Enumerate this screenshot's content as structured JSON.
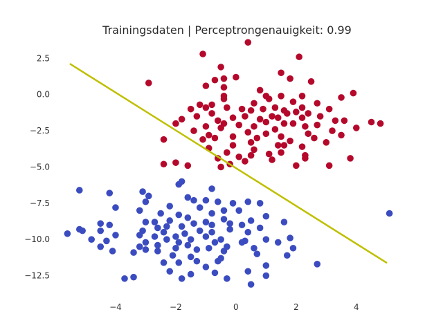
{
  "chart_data": {
    "type": "scatter",
    "title": "Trainingsdaten | Perceptrongenauigkeit: 0.99",
    "xlabel": "",
    "ylabel": "",
    "xlim": [
      -6.0,
      5.5
    ],
    "ylim": [
      -14.0,
      3.9
    ],
    "x_ticks": [
      -4,
      -2,
      0,
      2,
      4
    ],
    "x_tick_labels": [
      "−4",
      "−2",
      "0",
      "2",
      "4"
    ],
    "y_ticks": [
      2.5,
      0.0,
      -2.5,
      -5.0,
      -7.5,
      -10.0,
      -12.5
    ],
    "y_tick_labels": [
      "2.5",
      "0.0",
      "−2.5",
      "−5.0",
      "−7.5",
      "−10.0",
      "−12.5"
    ],
    "grid": false,
    "colors": {
      "class_red": "#b5092c",
      "class_blue": "#3b4cc0",
      "boundary": "#bfbf00"
    },
    "decision_boundary": {
      "x": [
        -5.5,
        5.0
      ],
      "y": [
        2.1,
        -11.6
      ]
    },
    "series": [
      {
        "color": "#b5092c",
        "points": [
          [
            0.4,
            3.6
          ],
          [
            -1.1,
            2.8
          ],
          [
            2.1,
            2.6
          ],
          [
            -0.5,
            1.9
          ],
          [
            1.5,
            1.5
          ],
          [
            0.0,
            1.2
          ],
          [
            -0.7,
            1.0
          ],
          [
            -0.4,
            1.1
          ],
          [
            1.8,
            1.1
          ],
          [
            2.5,
            0.9
          ],
          [
            -2.9,
            0.8
          ],
          [
            -1.0,
            0.6
          ],
          [
            -0.4,
            0.5
          ],
          [
            0.8,
            0.3
          ],
          [
            3.9,
            0.1
          ],
          [
            -0.4,
            -0.1
          ],
          [
            1.0,
            -0.1
          ],
          [
            1.5,
            -0.1
          ],
          [
            2.2,
            -0.1
          ],
          [
            3.5,
            -0.2
          ],
          [
            -0.4,
            -0.3
          ],
          [
            1.1,
            -0.3
          ],
          [
            1.9,
            -0.5
          ],
          [
            0.6,
            -0.6
          ],
          [
            2.7,
            -0.6
          ],
          [
            -1.2,
            -0.7
          ],
          [
            -0.8,
            -0.7
          ],
          [
            -1.0,
            -0.9
          ],
          [
            1.3,
            -0.9
          ],
          [
            2.2,
            -0.9
          ],
          [
            -0.3,
            -0.9
          ],
          [
            0.2,
            -1.0
          ],
          [
            0.9,
            -1.0
          ],
          [
            3.1,
            -1.0
          ],
          [
            -1.5,
            -1.0
          ],
          [
            0.5,
            -1.1
          ],
          [
            1.6,
            -1.1
          ],
          [
            2.0,
            -1.2
          ],
          [
            -0.8,
            -1.3
          ],
          [
            1.7,
            -1.3
          ],
          [
            2.4,
            -1.3
          ],
          [
            -1.3,
            -1.5
          ],
          [
            0.3,
            -1.5
          ],
          [
            1.2,
            -1.5
          ],
          [
            2.8,
            -1.5
          ],
          [
            -0.1,
            -1.6
          ],
          [
            1.4,
            -1.6
          ],
          [
            2.2,
            -1.6
          ],
          [
            -1.8,
            -1.7
          ],
          [
            0.8,
            -1.7
          ],
          [
            3.3,
            -1.8
          ],
          [
            -0.6,
            -1.8
          ],
          [
            3.6,
            -1.8
          ],
          [
            1.0,
            -1.9
          ],
          [
            4.5,
            -1.9
          ],
          [
            -0.4,
            -2.0
          ],
          [
            1.6,
            -2.0
          ],
          [
            4.8,
            -2.0
          ],
          [
            -2.0,
            -2.0
          ],
          [
            1.9,
            -2.0
          ],
          [
            0.1,
            -2.1
          ],
          [
            2.7,
            -2.1
          ],
          [
            -1.0,
            -2.2
          ],
          [
            0.6,
            -2.2
          ],
          [
            2.3,
            -2.2
          ],
          [
            4.0,
            -2.3
          ],
          [
            -0.5,
            -2.3
          ],
          [
            1.3,
            -2.4
          ],
          [
            3.2,
            -2.5
          ],
          [
            -1.4,
            -2.5
          ],
          [
            0.4,
            -2.6
          ],
          [
            1.0,
            -2.7
          ],
          [
            2.4,
            -2.7
          ],
          [
            -0.9,
            -2.8
          ],
          [
            3.5,
            -2.8
          ],
          [
            -0.1,
            -2.9
          ],
          [
            1.5,
            -2.9
          ],
          [
            -0.7,
            -3.0
          ],
          [
            0.7,
            -3.0
          ],
          [
            2.6,
            -3.0
          ],
          [
            -1.1,
            -3.1
          ],
          [
            -2.4,
            -3.1
          ],
          [
            1.8,
            -3.2
          ],
          [
            0.5,
            -3.3
          ],
          [
            3.0,
            -3.3
          ],
          [
            1.4,
            -3.5
          ],
          [
            -0.1,
            -3.5
          ],
          [
            1.6,
            -3.5
          ],
          [
            2.2,
            -3.6
          ],
          [
            -0.9,
            -3.7
          ],
          [
            0.6,
            -3.8
          ],
          [
            -0.3,
            -4.0
          ],
          [
            1.5,
            -4.0
          ],
          [
            1.1,
            -4.1
          ],
          [
            2.3,
            -4.2
          ],
          [
            0.5,
            -4.2
          ],
          [
            0.1,
            -4.3
          ],
          [
            -0.6,
            -4.4
          ],
          [
            2.3,
            -4.4
          ],
          [
            3.8,
            -4.4
          ],
          [
            -2.0,
            -4.7
          ],
          [
            0.3,
            -4.6
          ],
          [
            1.2,
            -4.5
          ],
          [
            -0.2,
            -4.8
          ],
          [
            -1.6,
            -4.9
          ],
          [
            3.1,
            -4.9
          ],
          [
            -0.5,
            -5.0
          ],
          [
            -2.4,
            -4.8
          ],
          [
            2.0,
            -4.9
          ]
        ]
      },
      {
        "color": "#3b4cc0",
        "points": [
          [
            -1.8,
            -6.0
          ],
          [
            -1.9,
            -6.2
          ],
          [
            -5.2,
            -6.6
          ],
          [
            -3.1,
            -6.7
          ],
          [
            -4.2,
            -6.8
          ],
          [
            -0.8,
            -6.5
          ],
          [
            -2.9,
            -7.0
          ],
          [
            -1.6,
            -7.1
          ],
          [
            -1.4,
            -7.3
          ],
          [
            -1.0,
            -7.3
          ],
          [
            -3.0,
            -7.4
          ],
          [
            -0.6,
            -7.4
          ],
          [
            -0.1,
            -7.5
          ],
          [
            0.4,
            -7.4
          ],
          [
            0.8,
            -7.5
          ],
          [
            -2.2,
            -7.7
          ],
          [
            -4.0,
            -7.8
          ],
          [
            -3.2,
            -8.0
          ],
          [
            -1.2,
            -7.8
          ],
          [
            -0.4,
            -8.0
          ],
          [
            0.1,
            -8.0
          ],
          [
            -2.5,
            -8.2
          ],
          [
            -1.9,
            -8.3
          ],
          [
            -0.8,
            -8.2
          ],
          [
            5.1,
            -8.2
          ],
          [
            1.0,
            -8.4
          ],
          [
            -1.6,
            -8.5
          ],
          [
            -0.4,
            -8.6
          ],
          [
            0.5,
            -8.7
          ],
          [
            -2.2,
            -8.7
          ],
          [
            -3.0,
            -8.8
          ],
          [
            -2.7,
            -8.8
          ],
          [
            -1.4,
            -8.9
          ],
          [
            -1.0,
            -8.8
          ],
          [
            -0.2,
            -8.9
          ],
          [
            1.6,
            -8.8
          ],
          [
            -4.5,
            -8.9
          ],
          [
            -4.2,
            -9.0
          ],
          [
            -2.3,
            -9.1
          ],
          [
            -0.8,
            -9.0
          ],
          [
            0.2,
            -9.0
          ],
          [
            -1.8,
            -9.1
          ],
          [
            0.8,
            -9.2
          ],
          [
            -2.6,
            -9.2
          ],
          [
            -5.2,
            -9.3
          ],
          [
            -4.5,
            -9.4
          ],
          [
            -5.1,
            -9.4
          ],
          [
            -3.1,
            -9.4
          ],
          [
            -1.2,
            -9.4
          ],
          [
            -0.2,
            -9.3
          ],
          [
            -2.4,
            -9.5
          ],
          [
            -1.7,
            -9.6
          ],
          [
            -0.8,
            -9.5
          ],
          [
            0.4,
            -9.5
          ],
          [
            -5.6,
            -9.6
          ],
          [
            -4.0,
            -9.7
          ],
          [
            -3.2,
            -9.7
          ],
          [
            -2.7,
            -9.8
          ],
          [
            -2.0,
            -9.8
          ],
          [
            -1.0,
            -9.8
          ],
          [
            1.8,
            -9.9
          ],
          [
            -4.8,
            -10.0
          ],
          [
            -2.3,
            -10.0
          ],
          [
            -1.5,
            -10.0
          ],
          [
            -0.5,
            -10.0
          ],
          [
            0.3,
            -10.1
          ],
          [
            1.0,
            -10.0
          ],
          [
            -4.3,
            -10.1
          ],
          [
            -3.0,
            -10.2
          ],
          [
            -1.9,
            -10.2
          ],
          [
            -0.7,
            -10.2
          ],
          [
            0.2,
            -10.2
          ],
          [
            1.4,
            -10.2
          ],
          [
            -2.6,
            -10.4
          ],
          [
            -1.6,
            -10.4
          ],
          [
            -0.3,
            -10.5
          ],
          [
            -4.5,
            -10.5
          ],
          [
            -3.2,
            -10.5
          ],
          [
            -2.0,
            -10.6
          ],
          [
            -0.9,
            -10.6
          ],
          [
            0.6,
            -10.6
          ],
          [
            1.9,
            -10.6
          ],
          [
            -3.0,
            -10.7
          ],
          [
            -1.3,
            -10.7
          ],
          [
            -0.4,
            -10.8
          ],
          [
            -2.6,
            -10.8
          ],
          [
            -4.1,
            -10.8
          ],
          [
            -3.4,
            -10.9
          ],
          [
            0.7,
            -11.0
          ],
          [
            1.7,
            -11.1
          ],
          [
            -2.1,
            -11.1
          ],
          [
            -1.5,
            -11.2
          ],
          [
            -0.5,
            -11.3
          ],
          [
            -1.3,
            -11.5
          ],
          [
            -2.4,
            -11.6
          ],
          [
            -1.9,
            -11.6
          ],
          [
            -0.6,
            -11.5
          ],
          [
            1.0,
            -11.8
          ],
          [
            2.7,
            -11.7
          ],
          [
            -1.0,
            -11.9
          ],
          [
            -2.2,
            -12.2
          ],
          [
            0.4,
            -12.2
          ],
          [
            -1.5,
            -12.4
          ],
          [
            -0.7,
            -12.3
          ],
          [
            1.0,
            -12.5
          ],
          [
            -3.4,
            -12.6
          ],
          [
            -3.7,
            -12.7
          ],
          [
            -1.8,
            -12.7
          ],
          [
            -0.3,
            -12.7
          ],
          [
            0.5,
            -13.1
          ]
        ]
      }
    ]
  }
}
